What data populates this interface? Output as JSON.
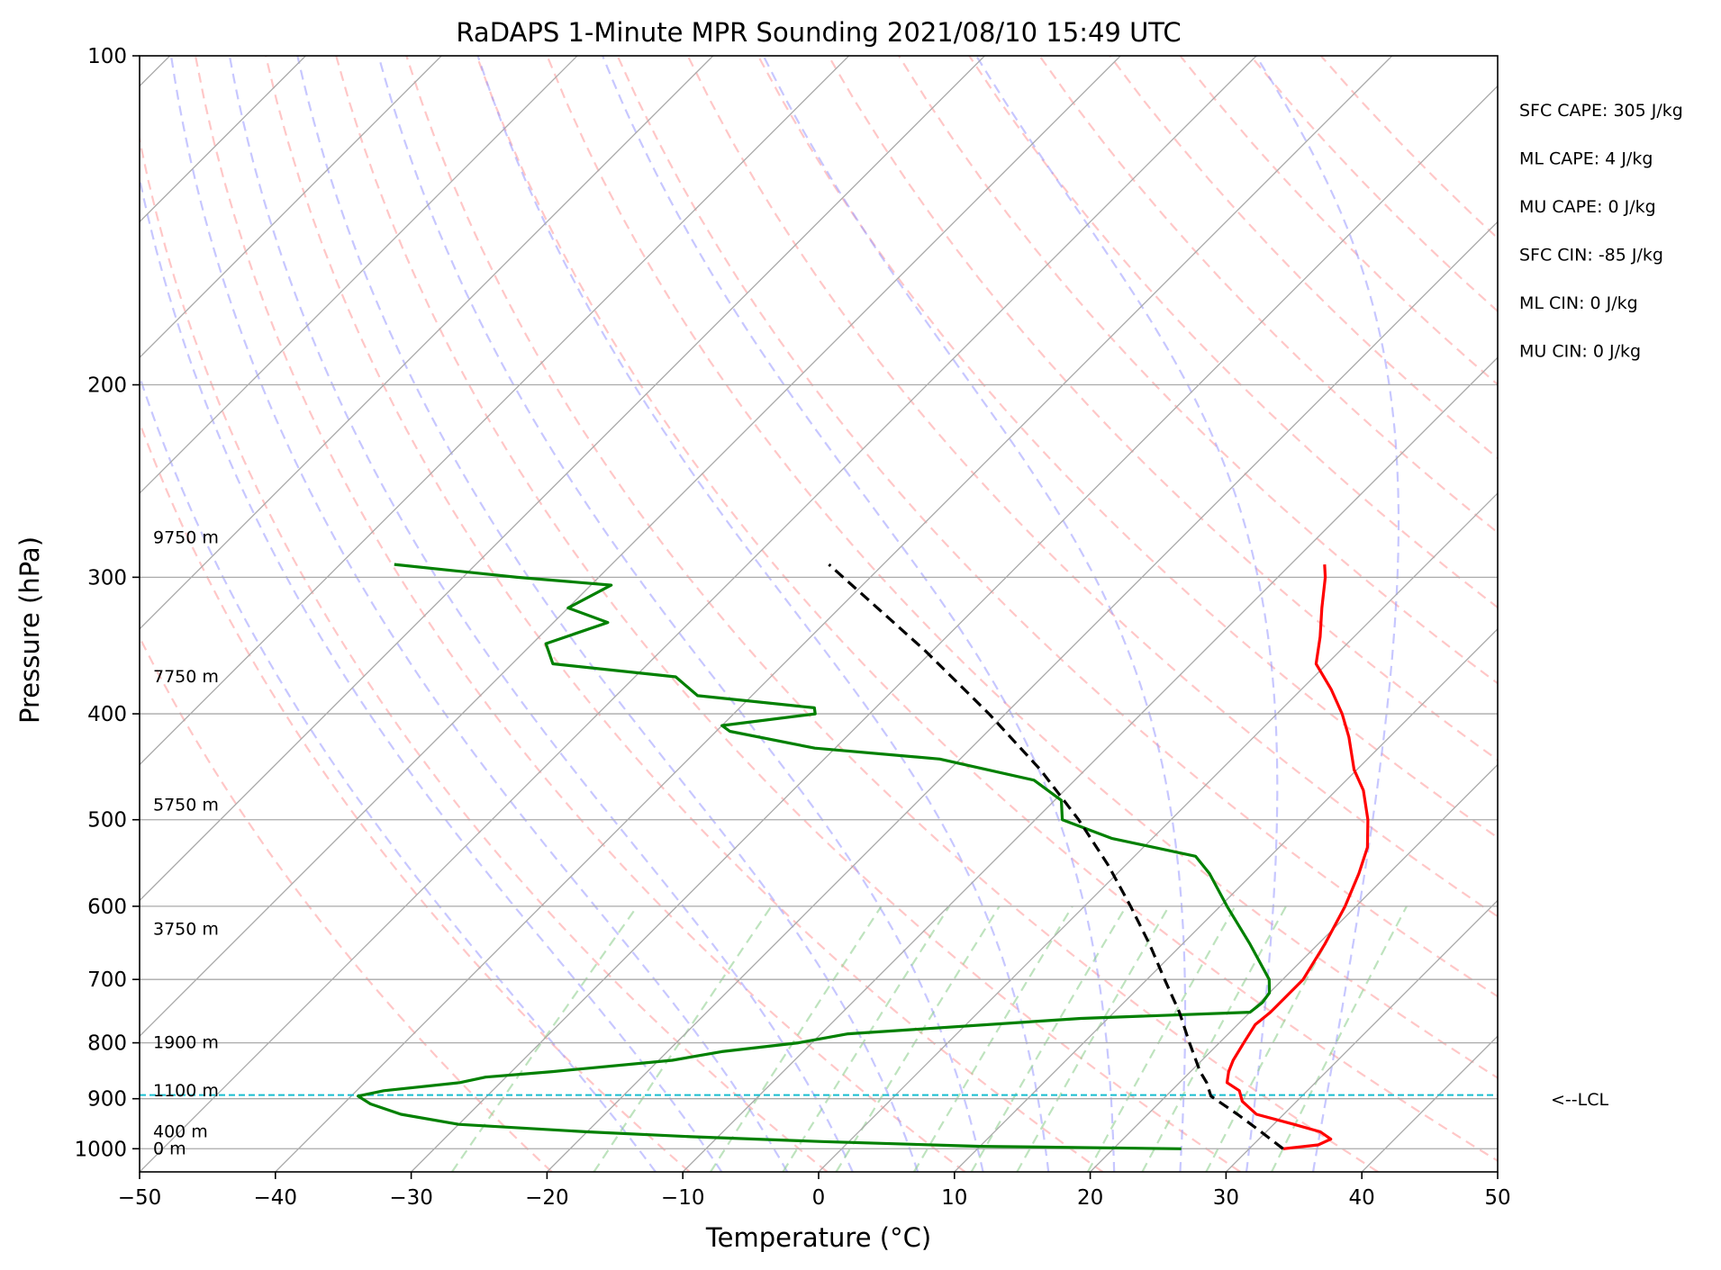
{
  "chart_data": {
    "type": "line",
    "subtype": "skew-t log-p diagram",
    "title": "RaDAPS 1-Minute MPR Sounding 2021/08/10 15:49 UTC",
    "xlabel": "Temperature (°C)",
    "ylabel": "Pressure (hPa)",
    "xlim": [
      -50,
      50
    ],
    "ylim": [
      1050,
      100
    ],
    "yscale": "log",
    "x_ticks": [
      -50,
      -40,
      -30,
      -20,
      -10,
      0,
      10,
      20,
      30,
      40,
      50
    ],
    "x_tick_labels": [
      "−50",
      "−40",
      "−30",
      "−20",
      "−10",
      "0",
      "10",
      "20",
      "30",
      "40",
      "50"
    ],
    "y_ticks": [
      100,
      200,
      300,
      400,
      500,
      600,
      700,
      800,
      900,
      1000
    ],
    "y_tick_labels": [
      "100",
      "200",
      "300",
      "400",
      "500",
      "600",
      "700",
      "800",
      "900",
      "1000"
    ],
    "grid": true,
    "colors": {
      "temperature": "#ff0000",
      "dewpoint": "#008000",
      "parcel": "#000000",
      "lcl": "#17becf",
      "dry_adiabat": "#ff9999",
      "moist_adiabat": "#9999ff",
      "mixing_ratio": "#88cc88",
      "isotherm": "#aaaaaa"
    },
    "series": [
      {
        "key": "temperature",
        "points": [
          [
            1000,
            32.5
          ],
          [
            992,
            34.8
          ],
          [
            980,
            35.3
          ],
          [
            965,
            34.0
          ],
          [
            950,
            31.5
          ],
          [
            930,
            28.0
          ],
          [
            905,
            26.0
          ],
          [
            885,
            25.0
          ],
          [
            870,
            23.5
          ],
          [
            850,
            22.8
          ],
          [
            830,
            22.3
          ],
          [
            800,
            21.8
          ],
          [
            770,
            21.3
          ],
          [
            750,
            21.5
          ],
          [
            700,
            21.5
          ],
          [
            650,
            20.5
          ],
          [
            600,
            19.2
          ],
          [
            560,
            17.8
          ],
          [
            530,
            16.5
          ],
          [
            500,
            14.5
          ],
          [
            470,
            12.0
          ],
          [
            450,
            9.8
          ],
          [
            420,
            7.0
          ],
          [
            400,
            4.8
          ],
          [
            380,
            2.2
          ],
          [
            360,
            -0.8
          ],
          [
            340,
            -2.5
          ],
          [
            320,
            -4.5
          ],
          [
            300,
            -6.5
          ],
          [
            292,
            -7.5
          ]
        ]
      },
      {
        "key": "dewpoint",
        "points": [
          [
            1000,
            25.0
          ],
          [
            995,
            10.0
          ],
          [
            985,
            -2.0
          ],
          [
            975,
            -12.0
          ],
          [
            965,
            -20.0
          ],
          [
            950,
            -30.0
          ],
          [
            930,
            -35.0
          ],
          [
            910,
            -38.0
          ],
          [
            895,
            -39.5
          ],
          [
            885,
            -38.0
          ],
          [
            870,
            -33.0
          ],
          [
            860,
            -31.5
          ],
          [
            850,
            -27.0
          ],
          [
            830,
            -19.0
          ],
          [
            815,
            -16.0
          ],
          [
            800,
            -11.0
          ],
          [
            785,
            -8.0
          ],
          [
            760,
            8.0
          ],
          [
            750,
            20.0
          ],
          [
            735,
            20.2
          ],
          [
            720,
            20.0
          ],
          [
            700,
            19.0
          ],
          [
            650,
            15.0
          ],
          [
            600,
            10.5
          ],
          [
            560,
            6.8
          ],
          [
            540,
            4.5
          ],
          [
            520,
            -3.0
          ],
          [
            500,
            -8.0
          ],
          [
            480,
            -9.5
          ],
          [
            460,
            -13.0
          ],
          [
            440,
            -21.5
          ],
          [
            430,
            -31.5
          ],
          [
            415,
            -39.0
          ],
          [
            410,
            -40.0
          ],
          [
            400,
            -34.0
          ],
          [
            395,
            -34.5
          ],
          [
            385,
            -44.0
          ],
          [
            370,
            -47.0
          ],
          [
            360,
            -57.0
          ],
          [
            345,
            -59.0
          ],
          [
            330,
            -56.0
          ],
          [
            320,
            -60.0
          ],
          [
            305,
            -58.5
          ],
          [
            300,
            -66.0
          ],
          [
            292,
            -76.0
          ]
        ]
      },
      {
        "key": "parcel",
        "points": [
          [
            1000,
            32.5
          ],
          [
            960,
            29.2
          ],
          [
            930,
            26.6
          ],
          [
            895,
            23.3
          ],
          [
            870,
            22.0
          ],
          [
            850,
            20.7
          ],
          [
            800,
            17.8
          ],
          [
            750,
            14.8
          ],
          [
            700,
            11.3
          ],
          [
            650,
            7.6
          ],
          [
            600,
            3.4
          ],
          [
            550,
            -1.3
          ],
          [
            500,
            -6.8
          ],
          [
            450,
            -13.3
          ],
          [
            400,
            -21.2
          ],
          [
            350,
            -30.6
          ],
          [
            300,
            -42.0
          ],
          [
            292,
            -44.0
          ]
        ]
      }
    ],
    "lcl_pressure": 893,
    "lcl_label": "<--LCL",
    "height_labels": [
      {
        "text": "9750 m",
        "pressure": 276
      },
      {
        "text": "7750 m",
        "pressure": 370
      },
      {
        "text": "5750 m",
        "pressure": 485
      },
      {
        "text": "3750 m",
        "pressure": 630
      },
      {
        "text": "1900 m",
        "pressure": 800
      },
      {
        "text": "1100 m",
        "pressure": 885
      },
      {
        "text": "400 m",
        "pressure": 965
      },
      {
        "text": "0 m",
        "pressure": 1000
      }
    ],
    "stats": [
      "SFC CAPE: 305 J/kg",
      "ML CAPE: 4 J/kg",
      "MU CAPE: 0 J/kg",
      "SFC CIN: -85 J/kg",
      "ML CIN: 0 J/kg",
      "MU CIN: 0 J/kg"
    ],
    "isotherms_c": [
      -130,
      -120,
      -110,
      -100,
      -90,
      -80,
      -70,
      -60,
      -50,
      -40,
      -30,
      -20,
      -10,
      0,
      10,
      20,
      30,
      40,
      50
    ],
    "dry_adiabats_k": [
      250,
      260,
      270,
      280,
      290,
      300,
      310,
      320,
      330,
      340,
      350,
      360,
      370,
      380,
      390,
      400,
      410,
      420,
      430,
      440
    ],
    "moist_adiabats_c": [
      -15,
      -10,
      -5,
      0,
      5,
      10,
      15,
      20,
      25,
      30,
      35
    ],
    "mixing_ratios_gkg": [
      0.4,
      1,
      2,
      3,
      4,
      6,
      8,
      10,
      14,
      18,
      24,
      32
    ]
  }
}
